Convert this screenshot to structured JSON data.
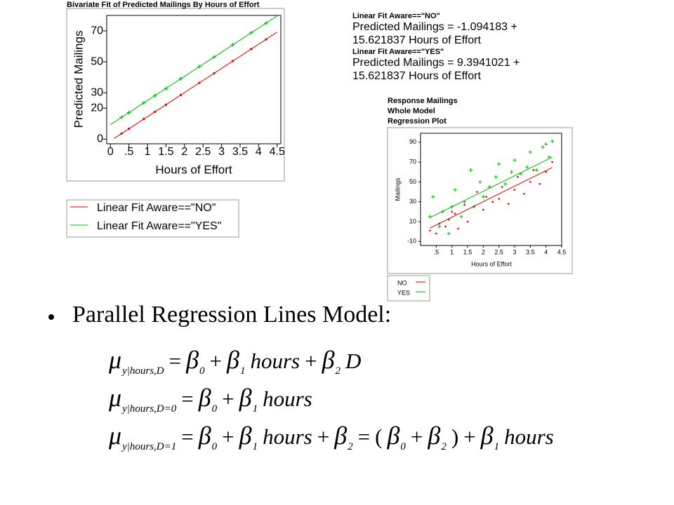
{
  "chart_data": [
    {
      "type": "scatter",
      "title": "Bivariate Fit of Predicted Mailings By Hours of Effort",
      "x_label": "Hours of Effort",
      "y_label": "Predicted Mailings",
      "xlim": [
        -0.1,
        4.6
      ],
      "ylim": [
        -3,
        80
      ],
      "xticks": [
        0,
        {
          "value": 0.5,
          "label": ".5"
        },
        1,
        1.5,
        2,
        2.5,
        3,
        3.5,
        4,
        4.5
      ],
      "yticks": [
        0,
        20,
        30,
        50,
        70
      ],
      "grid": false,
      "series": [
        {
          "name": "Linear Fit  Aware==\"NO\"",
          "color": "#dd0000",
          "mode": "line",
          "x": [
            0.1,
            4.5
          ],
          "values": [
            0.47,
            69.2
          ]
        },
        {
          "name": "Linear Fit  Aware==\"YES\"",
          "color": "#00bb00",
          "mode": "line",
          "x": [
            0,
            4.5
          ],
          "values": [
            9.4,
            79.7
          ]
        },
        {
          "color": "#dd0000",
          "mode": "points",
          "marker": "dot",
          "x": [
            0.3,
            0.5,
            0.9,
            1.2,
            1.5,
            1.9,
            2.4,
            2.8,
            3.3,
            3.8,
            4.2
          ],
          "values": [
            3.6,
            6.7,
            13.0,
            17.7,
            22.3,
            28.6,
            36.4,
            42.6,
            50.5,
            58.3,
            64.5
          ]
        },
        {
          "color": "#00bb00",
          "mode": "points",
          "marker": "plus",
          "x": [
            0.3,
            0.5,
            0.9,
            1.2,
            1.5,
            1.9,
            2.4,
            2.8,
            3.3,
            3.8,
            4.2
          ],
          "values": [
            14.1,
            17.2,
            23.5,
            28.2,
            32.8,
            39.1,
            46.9,
            53.1,
            61.0,
            68.8,
            75.0
          ]
        }
      ]
    },
    {
      "type": "scatter",
      "titles": [
        "Response Mailings",
        "Whole Model",
        "Regression Plot"
      ],
      "x_label": "Hours of Effort",
      "y_label": "Mailings",
      "xlim": [
        0,
        4.5
      ],
      "ylim": [
        -14,
        99
      ],
      "xticks": [
        {
          "value": 0.5,
          "label": ".5"
        },
        1,
        1.5,
        2,
        2.5,
        3,
        3.5,
        4,
        4.5
      ],
      "yticks": [
        -10,
        10,
        30,
        50,
        70,
        90
      ],
      "grid": false,
      "series": [
        {
          "name": "NO",
          "color": "#dd0000",
          "mode": "points",
          "marker": "dot",
          "x": [
            0.3,
            0.5,
            0.6,
            0.8,
            0.9,
            1.0,
            1.1,
            1.2,
            1.4,
            1.5,
            1.7,
            1.8,
            2.0,
            2.1,
            2.3,
            2.5,
            2.6,
            2.8,
            3.0,
            3.1,
            3.3,
            3.5,
            3.6,
            3.8,
            4.0,
            4.2
          ],
          "values": [
            1,
            -2,
            8,
            5,
            12,
            20,
            18,
            3,
            27,
            10,
            25,
            40,
            22,
            35,
            30,
            33,
            45,
            28,
            42,
            55,
            38,
            50,
            62,
            48,
            60,
            70
          ]
        },
        {
          "name": "YES",
          "color": "#00bb00",
          "mode": "points",
          "marker": "plus",
          "x": [
            0.3,
            0.4,
            0.6,
            0.7,
            0.9,
            1.0,
            1.1,
            1.3,
            1.4,
            1.6,
            1.7,
            1.9,
            2.0,
            2.2,
            2.4,
            2.5,
            2.7,
            2.9,
            3.0,
            3.2,
            3.4,
            3.5,
            3.7,
            3.9,
            4.0,
            4.1,
            4.2
          ],
          "values": [
            15,
            35,
            5,
            20,
            -2,
            25,
            42,
            15,
            30,
            62,
            25,
            50,
            35,
            45,
            55,
            68,
            48,
            60,
            72,
            58,
            65,
            80,
            62,
            85,
            88,
            75,
            91
          ]
        },
        {
          "color": "#dd0000",
          "mode": "line",
          "x": [
            0.3,
            4.2
          ],
          "values": [
            3.6,
            64.5
          ]
        },
        {
          "color": "#00bb00",
          "mode": "line",
          "x": [
            0.3,
            4.2
          ],
          "values": [
            14.1,
            75.0
          ]
        }
      ]
    }
  ],
  "fit_text": [
    {
      "heading": "Linear Fit  Aware==\"NO\"",
      "lines": [
        "Predicted Mailings = -1.094183 +",
        "15.621837 Hours of Effort"
      ]
    },
    {
      "heading": "Linear Fit  Aware==\"YES\"",
      "lines": [
        "Predicted Mailings = 9.3941021 +",
        "15.621837 Hours of Effort"
      ]
    }
  ],
  "bullet": "Parallel Regression Lines Model:",
  "equations": [
    [
      {
        "base": "μ",
        "sub": "y|hours,D"
      },
      "=",
      {
        "base": "β",
        "sub": "0"
      },
      "+",
      {
        "base": "β",
        "sub": "1"
      },
      "hours",
      "+",
      {
        "base": "β",
        "sub": "2"
      },
      "D"
    ],
    [
      {
        "base": "μ",
        "sub": "y|hours,D=0"
      },
      "=",
      {
        "base": "β",
        "sub": "0"
      },
      "+",
      {
        "base": "β",
        "sub": "1"
      },
      "hours"
    ],
    [
      {
        "base": "μ",
        "sub": "y|hours,D=1"
      },
      "=",
      {
        "base": "β",
        "sub": "0"
      },
      "+",
      {
        "base": "β",
        "sub": "1"
      },
      "hours",
      "+",
      {
        "base": "β",
        "sub": "2"
      },
      "=",
      "(",
      {
        "base": "β",
        "sub": "0"
      },
      "+",
      {
        "base": "β",
        "sub": "2"
      },
      ")",
      "+",
      {
        "base": "β",
        "sub": "1"
      },
      "hours"
    ]
  ]
}
